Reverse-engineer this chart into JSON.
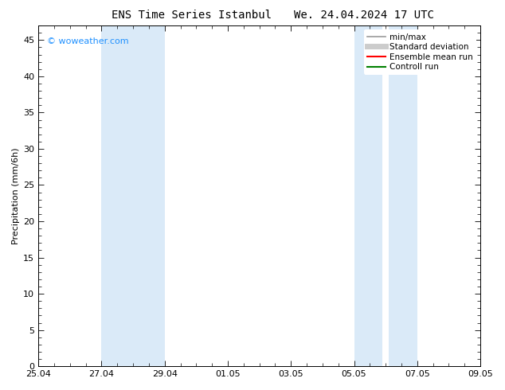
{
  "title_left": "ENS Time Series Istanbul",
  "title_right": "We. 24.04.2024 17 UTC",
  "ylabel": "Precipitation (mm/6h)",
  "xlabel": "",
  "background_color": "#ffffff",
  "plot_bg_color": "#ffffff",
  "ymin": 0,
  "ymax": 47,
  "yticks": [
    0,
    5,
    10,
    15,
    20,
    25,
    30,
    35,
    40,
    45
  ],
  "xtick_labels": [
    "25.04",
    "27.04",
    "29.04",
    "01.05",
    "03.05",
    "05.05",
    "07.05",
    "09.05"
  ],
  "xtick_positions": [
    0,
    2,
    4,
    6,
    8,
    10,
    12,
    14
  ],
  "x_min": 0,
  "x_max": 14,
  "shaded_regions": [
    {
      "xmin": 2.0,
      "xmax": 4.0
    },
    {
      "xmin": 10.0,
      "xmax": 10.9
    },
    {
      "xmin": 11.1,
      "xmax": 12.0
    }
  ],
  "shade_color": "#daeaf8",
  "watermark_text": "© woweather.com",
  "watermark_color": "#1e90ff",
  "legend_items": [
    {
      "label": "min/max",
      "color": "#999999",
      "lw": 1.2,
      "ls": "-"
    },
    {
      "label": "Standard deviation",
      "color": "#cccccc",
      "lw": 5,
      "ls": "-"
    },
    {
      "label": "Ensemble mean run",
      "color": "#ff0000",
      "lw": 1.5,
      "ls": "-"
    },
    {
      "label": "Controll run",
      "color": "#008000",
      "lw": 1.5,
      "ls": "-"
    }
  ],
  "tick_color": "#000000",
  "spine_color": "#000000",
  "font_size": 8,
  "title_font_size": 10,
  "minor_xtick_count": 4,
  "legend_fontsize": 7.5
}
